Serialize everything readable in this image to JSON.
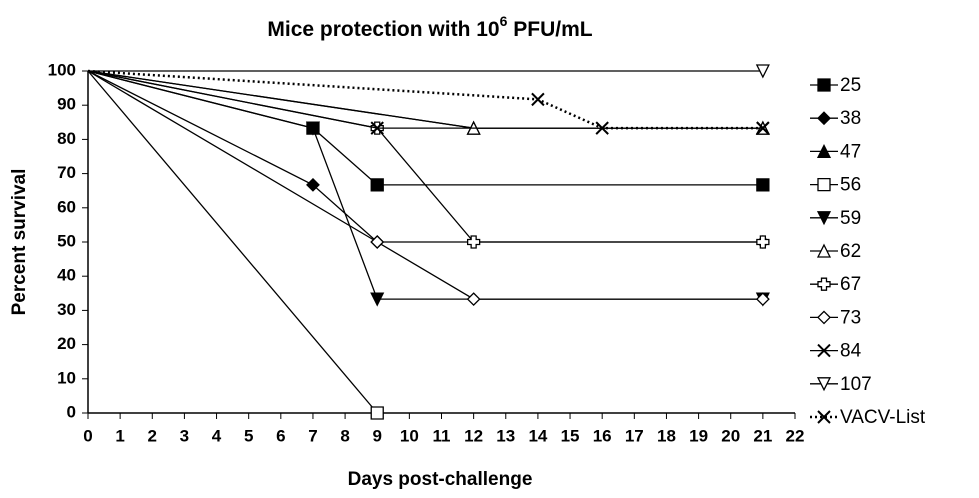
{
  "chart_data": {
    "type": "line",
    "title": {
      "text": "Mice protection with 10",
      "superscript": "6",
      "suffix": " PFU/mL"
    },
    "xlabel": "Days post-challenge",
    "ylabel": "Percent survival",
    "xlim": [
      0,
      22
    ],
    "xticks": [
      0,
      1,
      2,
      3,
      4,
      5,
      6,
      7,
      8,
      9,
      10,
      11,
      12,
      13,
      14,
      15,
      16,
      17,
      18,
      19,
      20,
      21,
      22
    ],
    "ylim": [
      0,
      100
    ],
    "yticks": [
      0,
      10,
      20,
      30,
      40,
      50,
      60,
      70,
      80,
      90,
      100
    ],
    "grid": false,
    "legend": "right",
    "series": [
      {
        "name": "25",
        "color": "#000000",
        "marker": "square-filled",
        "x": [
          0,
          7,
          9,
          21
        ],
        "values": [
          100,
          83.3,
          66.7,
          66.7
        ]
      },
      {
        "name": "38",
        "color": "#000000",
        "marker": "diamond-filled",
        "x": [
          0,
          7,
          9,
          21
        ],
        "values": [
          100,
          66.7,
          50,
          50
        ]
      },
      {
        "name": "47",
        "color": "#000000",
        "marker": "triangle-filled",
        "x": [
          0,
          12,
          21
        ],
        "values": [
          100,
          83.3,
          83.3
        ]
      },
      {
        "name": "56",
        "color": "#000000",
        "marker": "square-open",
        "x": [
          0,
          9
        ],
        "values": [
          100,
          0
        ]
      },
      {
        "name": "59",
        "color": "#000000",
        "marker": "down-filled",
        "x": [
          0,
          7,
          9,
          21
        ],
        "values": [
          100,
          83.3,
          33.3,
          33.3
        ]
      },
      {
        "name": "62",
        "color": "#000000",
        "marker": "triangle-open",
        "x": [
          0,
          12,
          21
        ],
        "values": [
          100,
          83.3,
          83.3
        ]
      },
      {
        "name": "67",
        "color": "#000000",
        "marker": "cross-open",
        "x": [
          0,
          9,
          12,
          21
        ],
        "values": [
          100,
          83.3,
          50,
          50
        ]
      },
      {
        "name": "73",
        "color": "#000000",
        "marker": "diamond-open",
        "x": [
          0,
          9,
          12,
          21
        ],
        "values": [
          100,
          50,
          33.3,
          33.3
        ]
      },
      {
        "name": "84",
        "color": "#000000",
        "marker": "x",
        "x": [
          0,
          9,
          21
        ],
        "values": [
          100,
          83.3,
          83.3
        ]
      },
      {
        "name": "107",
        "color": "#000000",
        "marker": "down-open",
        "x": [
          0,
          21
        ],
        "values": [
          100,
          100
        ]
      },
      {
        "name": "VACV-List",
        "color": "#000000",
        "marker": "x",
        "dash": "dotted",
        "x": [
          0,
          14,
          16,
          21
        ],
        "values": [
          100,
          91.7,
          83.3,
          83.3
        ]
      }
    ]
  }
}
